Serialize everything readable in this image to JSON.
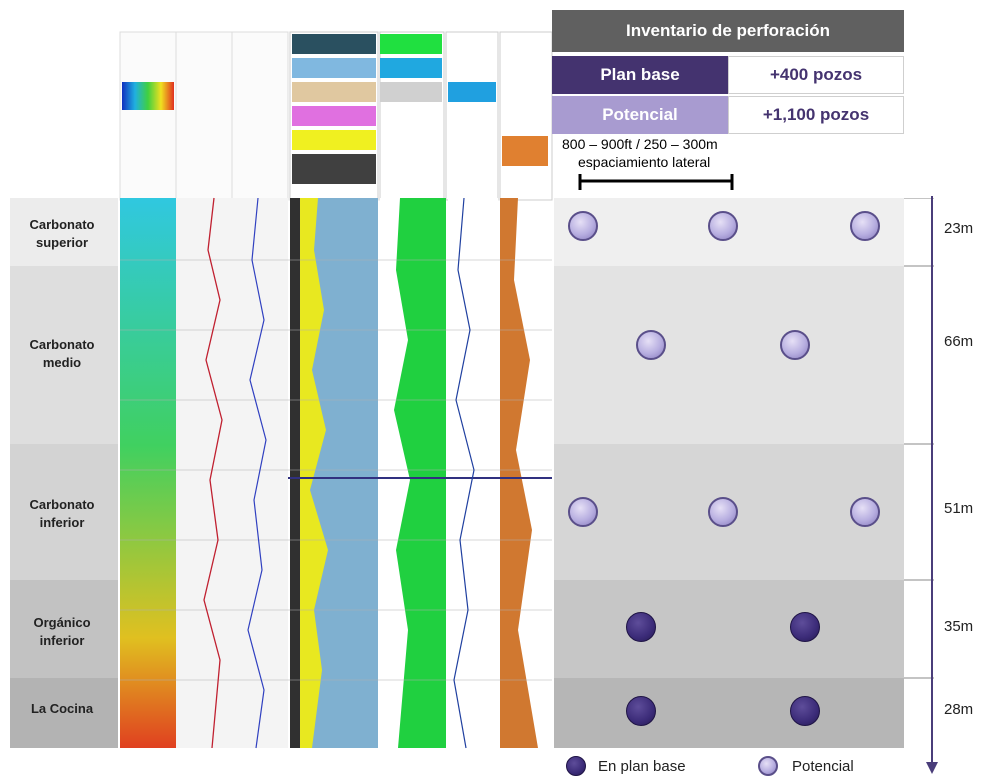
{
  "inventory": {
    "title": "Inventario de perforación",
    "rows": [
      {
        "label": "Plan base",
        "value": "+400 pozos",
        "color": "#44336f"
      },
      {
        "label": "Potencial",
        "value": "+1,100 pozos",
        "color": "#a89bd0"
      }
    ]
  },
  "spacing": {
    "line1": "800 – 900ft / 250 – 300m",
    "line2": "espaciamiento lateral"
  },
  "layers": [
    {
      "name": "Carbonato superior",
      "thickness": "23m"
    },
    {
      "name": "Carbonato medio",
      "thickness": "66m"
    },
    {
      "name": "Carbonato inferior",
      "thickness": "51m"
    },
    {
      "name": "Orgánico inferior",
      "thickness": "35m"
    },
    {
      "name": "La Cocina",
      "thickness": "28m"
    }
  ],
  "legend": {
    "base": "En plan base",
    "potential": "Potencial"
  },
  "colors": {
    "plan_base": "#3b2b78",
    "potencial": "#b7aee0",
    "arrow": "#4a3d7a"
  }
}
